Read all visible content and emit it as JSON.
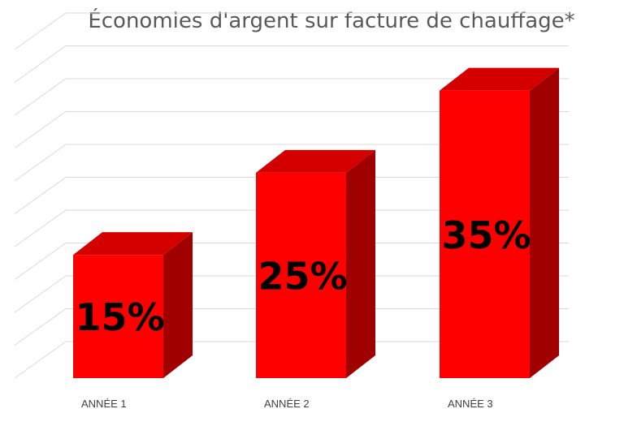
{
  "chart_data": {
    "type": "bar",
    "style": "3d-column",
    "title": "Économies d'argent sur facture de chauffage*",
    "categories": [
      "ANNÉE 1",
      "ANNÉE 2",
      "ANNÉE 3"
    ],
    "values": [
      15,
      25,
      35
    ],
    "data_labels": [
      "15%",
      "25%",
      "35%"
    ],
    "ylim": [
      0,
      40
    ],
    "grid": true,
    "legend": "none",
    "colors": {
      "front": "#ff0000",
      "top": "#d40000",
      "side": "#a00000",
      "grid": "#d9d9d9"
    }
  }
}
